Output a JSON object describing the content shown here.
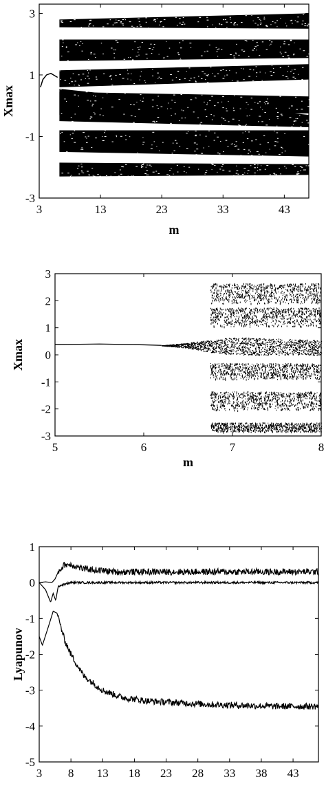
{
  "chart_data": [
    {
      "type": "scatter",
      "title": "",
      "xlabel": "m",
      "ylabel": "Xmax",
      "xlim": [
        3,
        47
      ],
      "ylim": [
        -3,
        3.3
      ],
      "xticks": [
        "3",
        "13",
        "23",
        "33",
        "43"
      ],
      "yticks": [
        "3",
        "1",
        "-1",
        "-3"
      ],
      "grid": false,
      "periodic_branch": {
        "x": [
          3.2,
          3.6,
          4.2,
          4.9,
          5.5,
          6.0
        ],
        "y": [
          0.6,
          0.85,
          1.0,
          1.05,
          0.98,
          0.92
        ]
      },
      "chaotic_bands": [
        {
          "y_low_start": 2.55,
          "y_high_start": 2.8,
          "y_low_end": 2.5,
          "y_high_end": 3.0
        },
        {
          "y_low_start": 1.45,
          "y_high_start": 2.15,
          "y_low_end": 1.55,
          "y_high_end": 2.15
        },
        {
          "y_low_start": 0.6,
          "y_high_start": 1.15,
          "y_low_end": 0.85,
          "y_high_end": 1.35
        },
        {
          "y_low_start": -0.3,
          "y_high_start": 0.45,
          "y_low_end": -0.25,
          "y_high_end": 0.3
        },
        {
          "y_low_start": -0.5,
          "y_high_start": 0.55,
          "y_low_end": -0.7,
          "y_high_end": -0.3
        },
        {
          "y_low_start": -1.5,
          "y_high_start": -0.8,
          "y_low_end": -1.65,
          "y_high_end": -0.8
        },
        {
          "y_low_start": -2.3,
          "y_high_start": -1.85,
          "y_low_end": -2.25,
          "y_high_end": -1.9
        }
      ],
      "chaos_onset_x": 6.3
    },
    {
      "type": "scatter",
      "title": "",
      "xlabel": "m",
      "ylabel": "Xmax",
      "xlim": [
        5,
        8
      ],
      "ylim": [
        -3,
        3
      ],
      "xticks": [
        "5",
        "6",
        "7",
        "8"
      ],
      "yticks": [
        "3",
        "2",
        "1",
        "0",
        "-1",
        "-2",
        "-3"
      ],
      "grid": false,
      "periodic_branch": {
        "x": [
          5.0,
          5.5,
          6.0,
          6.2
        ],
        "y": [
          0.38,
          0.4,
          0.37,
          0.35
        ]
      },
      "spreading_band": {
        "x": [
          6.2,
          6.5,
          6.75,
          7.0,
          7.5,
          8.0
        ],
        "y_low": [
          0.35,
          0.25,
          0.1,
          0.0,
          0.0,
          0.0
        ],
        "y_high": [
          0.35,
          0.45,
          0.55,
          0.65,
          0.6,
          0.55
        ]
      },
      "chaotic_bands": [
        {
          "x_start": 6.75,
          "y_low": 1.9,
          "y_high": 2.65
        },
        {
          "x_start": 6.75,
          "y_low": 1.05,
          "y_high": 1.75
        },
        {
          "x_start": 6.75,
          "y_low": -0.9,
          "y_high": -0.3
        },
        {
          "x_start": 6.75,
          "y_low": -2.05,
          "y_high": -1.35
        },
        {
          "x_start": 6.75,
          "y_low": -2.85,
          "y_high": -2.5
        }
      ]
    },
    {
      "type": "line",
      "title": "",
      "xlabel": "m",
      "ylabel": "Lyapunov",
      "xlim": [
        3,
        47
      ],
      "ylim": [
        -5,
        1
      ],
      "xticks": [
        "3",
        "8",
        "13",
        "18",
        "23",
        "28",
        "33",
        "38",
        "43"
      ],
      "yticks": [
        "1",
        "0",
        "-1",
        "-2",
        "-3",
        "-4",
        "-5"
      ],
      "grid": false,
      "series": [
        {
          "x": [
            3,
            4,
            5,
            5.5,
            6,
            7,
            8,
            10,
            15,
            20,
            30,
            47
          ],
          "y": [
            0,
            0.02,
            0.0,
            0.1,
            0.3,
            0.5,
            0.5,
            0.38,
            0.3,
            0.3,
            0.3,
            0.3
          ]
        },
        {
          "x": [
            3,
            4,
            4.8,
            5.2,
            5.6,
            6,
            8,
            20,
            47
          ],
          "y": [
            0,
            -0.2,
            -0.55,
            -0.3,
            -0.5,
            -0.1,
            0.0,
            0.0,
            0.0
          ]
        },
        {
          "x": [
            3,
            3.5,
            4.5,
            5.2,
            5.8,
            7,
            8,
            10,
            13,
            16,
            20,
            25,
            30,
            40,
            47
          ],
          "y": [
            -1.5,
            -1.75,
            -1.2,
            -0.8,
            -0.85,
            -1.6,
            -2.0,
            -2.6,
            -3.0,
            -3.2,
            -3.3,
            -3.35,
            -3.4,
            -3.45,
            -3.45
          ]
        }
      ]
    }
  ]
}
